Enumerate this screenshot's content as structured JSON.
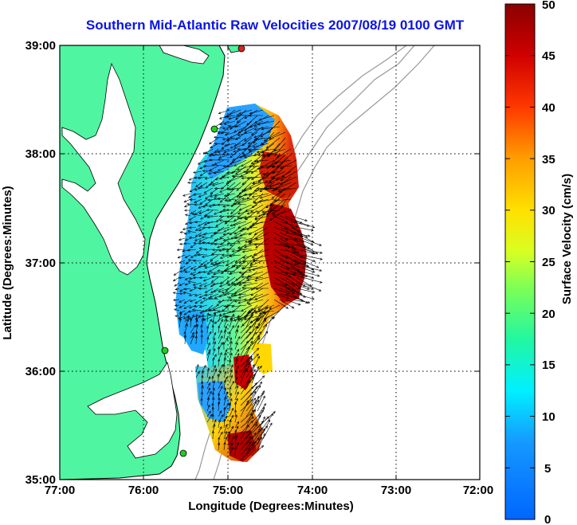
{
  "title": "Southern Mid-Atlantic Raw Velocities 2007/08/19 0100 GMT",
  "x_axis": {
    "label": "Longitude (Degrees:Minutes)",
    "ticks": [
      "77:00",
      "76:00",
      "75:00",
      "74:00",
      "73:00",
      "72:00"
    ]
  },
  "y_axis": {
    "label": "Latitude (Degrees:Minutes)",
    "ticks": [
      "39:00",
      "38:00",
      "37:00",
      "36:00",
      "35:00"
    ]
  },
  "colorbar": {
    "label": "Surface Velocity (cm/s)",
    "ticks": [
      "0",
      "5",
      "10",
      "15",
      "20",
      "25",
      "30",
      "35",
      "40",
      "45",
      "50"
    ],
    "min": 0,
    "max": 50
  },
  "map_extent": {
    "lon_range": [
      -77,
      -72
    ],
    "lat_range": [
      35,
      39
    ]
  },
  "colors": {
    "title": "#0a14e6",
    "land": "#4ff5a0",
    "water": "#ffffff",
    "coastline": "#000000",
    "bathymetry": "#999999",
    "gridlines": "#000000",
    "vectors": "#000000",
    "station_green": "#22cc22",
    "station_red": "#dd2222"
  },
  "stations": [
    {
      "lon": -74.85,
      "lat": 39.0,
      "color": "red"
    },
    {
      "lon": -74.98,
      "lat": 38.23,
      "color": "green"
    },
    {
      "lon": -75.65,
      "lat": 36.2,
      "color": "green"
    },
    {
      "lon": -75.52,
      "lat": 35.27,
      "color": "green"
    }
  ]
}
